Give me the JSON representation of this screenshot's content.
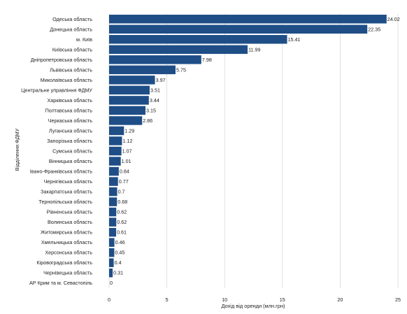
{
  "chart_data": {
    "type": "bar",
    "orientation": "horizontal",
    "title": "",
    "xlabel": "Дохід від оренди (млн.грн)",
    "ylabel": "Відділення ФДМУ",
    "xlim": [
      0,
      25
    ],
    "x_ticks": [
      0,
      5,
      10,
      15,
      20,
      25
    ],
    "grid": "vertical",
    "bar_color": "#1f4e87",
    "categories": [
      "Одеська область",
      "Донецька область",
      "м. Київ",
      "Київська область",
      "Дніпропетровська область",
      "Львівська область",
      "Миколаївська область",
      "Центральне управління ФДМУ",
      "Харківська область",
      "Полтавська область",
      "Черкаська область",
      "Луганська область",
      "Запорізька область",
      "Сумська область",
      "Вінницька область",
      "Івано-Франківська область",
      "Чернігівська область",
      "Закарпатська область",
      "Тернопільська область",
      "Рівненська область",
      "Волинська область",
      "Житомирська область",
      "Хмельницька область",
      "Херсонська область",
      "Кіровоградська область",
      "Чернівецька область",
      "АР Крим та м. Севастопіль"
    ],
    "values": [
      24.02,
      22.35,
      15.41,
      11.99,
      7.98,
      5.75,
      3.97,
      3.51,
      3.44,
      3.15,
      2.86,
      1.29,
      1.12,
      1.07,
      1.01,
      0.84,
      0.77,
      0.7,
      0.68,
      0.62,
      0.62,
      0.61,
      0.46,
      0.45,
      0.4,
      0.31,
      0
    ],
    "value_labels": [
      "24.02",
      "22.35",
      "15.41",
      "11.99",
      "7.98",
      "5.75",
      "3.97",
      "3.51",
      "3.44",
      "3.15",
      "2.86",
      "1.29",
      "1.12",
      "1.07",
      "1.01",
      "0.84",
      "0.77",
      "0.7",
      "0.68",
      "0.62",
      "0.62",
      "0.61",
      "0.46",
      "0.45",
      "0.4",
      "0.31",
      "0"
    ]
  }
}
